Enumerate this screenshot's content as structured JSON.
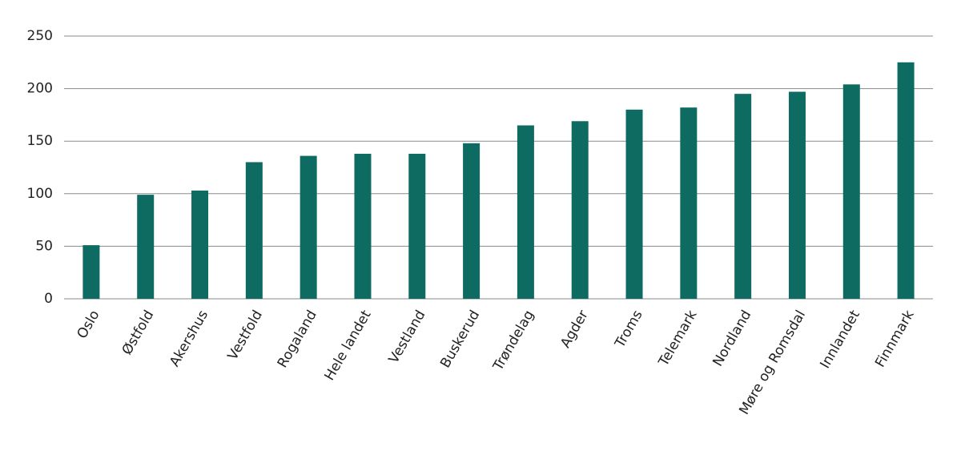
{
  "chart_data": {
    "type": "bar",
    "categories": [
      "Oslo",
      "Østfold",
      "Akershus",
      "Vestfold",
      "Rogaland",
      "Hele landet",
      "Vestland",
      "Buskerud",
      "Trøndelag",
      "Agder",
      "Troms",
      "Telemark",
      "Nordland",
      "Møre og Romsdal",
      "Innlandet",
      "Finnmark"
    ],
    "values": [
      51,
      99,
      103,
      130,
      136,
      138,
      138,
      148,
      165,
      169,
      180,
      182,
      195,
      197,
      204,
      225
    ],
    "color": "#0e6b62",
    "ylim": [
      0,
      250
    ],
    "yticks": [
      0,
      50,
      100,
      150,
      200,
      250
    ],
    "grid": true
  }
}
